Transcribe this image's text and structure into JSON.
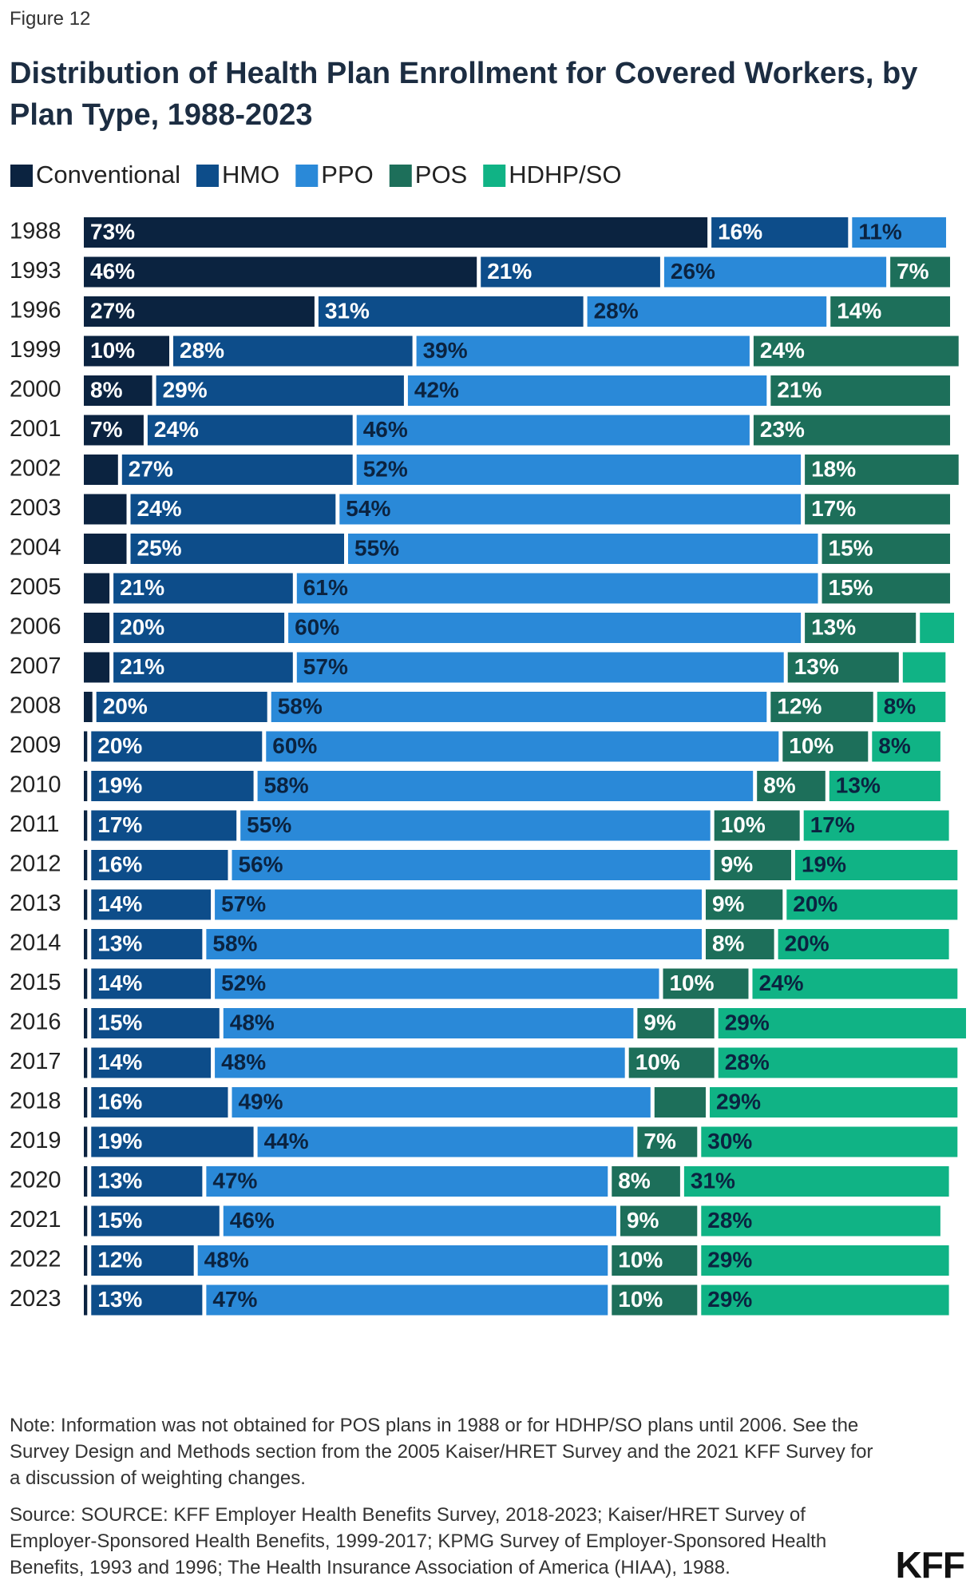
{
  "figure_label": "Figure 12",
  "chart_data": {
    "type": "stacked-bar-horizontal",
    "title": "Distribution of Health Plan Enrollment for Covered Workers, by Plan Type, 1988-2023",
    "categories": [
      "1988",
      "1993",
      "1996",
      "1999",
      "2000",
      "2001",
      "2002",
      "2003",
      "2004",
      "2005",
      "2006",
      "2007",
      "2008",
      "2009",
      "2010",
      "2011",
      "2012",
      "2013",
      "2014",
      "2015",
      "2016",
      "2017",
      "2018",
      "2019",
      "2020",
      "2021",
      "2022",
      "2023"
    ],
    "series": [
      {
        "name": "Conventional",
        "color": "#0b2340",
        "values": [
          73,
          46,
          27,
          10,
          8,
          7,
          4,
          5,
          5,
          3,
          3,
          3,
          1,
          0.4,
          0.4,
          0.4,
          0.4,
          0.4,
          0.4,
          0.4,
          0.4,
          0.4,
          0.4,
          0.4,
          0.4,
          0.4,
          0.4,
          0.4
        ],
        "value_labels": [
          "73%",
          "46%",
          "27%",
          "10%",
          "8%",
          "7%",
          null,
          null,
          null,
          null,
          null,
          null,
          null,
          null,
          null,
          null,
          null,
          null,
          null,
          null,
          null,
          null,
          null,
          null,
          null,
          null,
          null,
          null
        ]
      },
      {
        "name": "HMO",
        "color": "#0d4d8a",
        "values": [
          16,
          21,
          31,
          28,
          29,
          24,
          27,
          24,
          25,
          21,
          20,
          21,
          20,
          20,
          19,
          17,
          16,
          14,
          13,
          14,
          15,
          14,
          16,
          19,
          13,
          15,
          12,
          13
        ],
        "value_labels": [
          "16%",
          "21%",
          "31%",
          "28%",
          "29%",
          "24%",
          "27%",
          "24%",
          "25%",
          "21%",
          "20%",
          "21%",
          "20%",
          "20%",
          "19%",
          "17%",
          "16%",
          "14%",
          "13%",
          "14%",
          "15%",
          "14%",
          "16%",
          "19%",
          "13%",
          "15%",
          "12%",
          "13%"
        ]
      },
      {
        "name": "PPO",
        "color": "#2a89d8",
        "values": [
          11,
          26,
          28,
          39,
          42,
          46,
          52,
          54,
          55,
          61,
          60,
          57,
          58,
          60,
          58,
          55,
          56,
          57,
          58,
          52,
          48,
          48,
          49,
          44,
          47,
          46,
          48,
          47
        ],
        "value_labels": [
          "11%",
          "26%",
          "28%",
          "39%",
          "42%",
          "46%",
          "52%",
          "54%",
          "55%",
          "61%",
          "60%",
          "57%",
          "58%",
          "60%",
          "58%",
          "55%",
          "56%",
          "57%",
          "58%",
          "52%",
          "48%",
          "48%",
          "49%",
          "44%",
          "47%",
          "46%",
          "48%",
          "47%"
        ]
      },
      {
        "name": "POS",
        "color": "#1d6f5a",
        "values": [
          null,
          7,
          14,
          24,
          21,
          23,
          18,
          17,
          15,
          15,
          13,
          13,
          12,
          10,
          8,
          10,
          9,
          9,
          8,
          10,
          9,
          10,
          6,
          7,
          8,
          9,
          10,
          10
        ],
        "value_labels": [
          null,
          "7%",
          "14%",
          "24%",
          "21%",
          "23%",
          "18%",
          "17%",
          "15%",
          "15%",
          "13%",
          "13%",
          "12%",
          "10%",
          "8%",
          "10%",
          "9%",
          "9%",
          "8%",
          "10%",
          "9%",
          "10%",
          null,
          "7%",
          "8%",
          "9%",
          "10%",
          "10%"
        ]
      },
      {
        "name": "HDHP/SO",
        "color": "#10b385",
        "values": [
          null,
          null,
          null,
          null,
          null,
          null,
          null,
          null,
          null,
          null,
          4,
          5,
          8,
          8,
          13,
          17,
          19,
          20,
          20,
          24,
          29,
          28,
          29,
          30,
          31,
          28,
          29,
          29
        ],
        "value_labels": [
          null,
          null,
          null,
          null,
          null,
          null,
          null,
          null,
          null,
          null,
          null,
          null,
          "8%",
          "8%",
          "13%",
          "17%",
          "19%",
          "20%",
          "20%",
          "24%",
          "29%",
          "28%",
          "29%",
          "30%",
          "31%",
          "28%",
          "29%",
          "29%"
        ]
      }
    ]
  },
  "note": "Note: Information was not obtained for POS plans in 1988 or for HDHP/SO plans until 2006. See the Survey Design and Methods section from the 2005 Kaiser/HRET Survey and the 2021 KFF Survey for a discussion of weighting changes.",
  "source": "Source: SOURCE: KFF Employer Health Benefits Survey, 2018-2023; Kaiser/HRET Survey of Employer-Sponsored Health Benefits, 1999-2017; KPMG Survey of Employer-Sponsored Health Benefits, 1993 and 1996; The Health Insurance Association of America (HIAA), 1988.",
  "logo": "KFF"
}
